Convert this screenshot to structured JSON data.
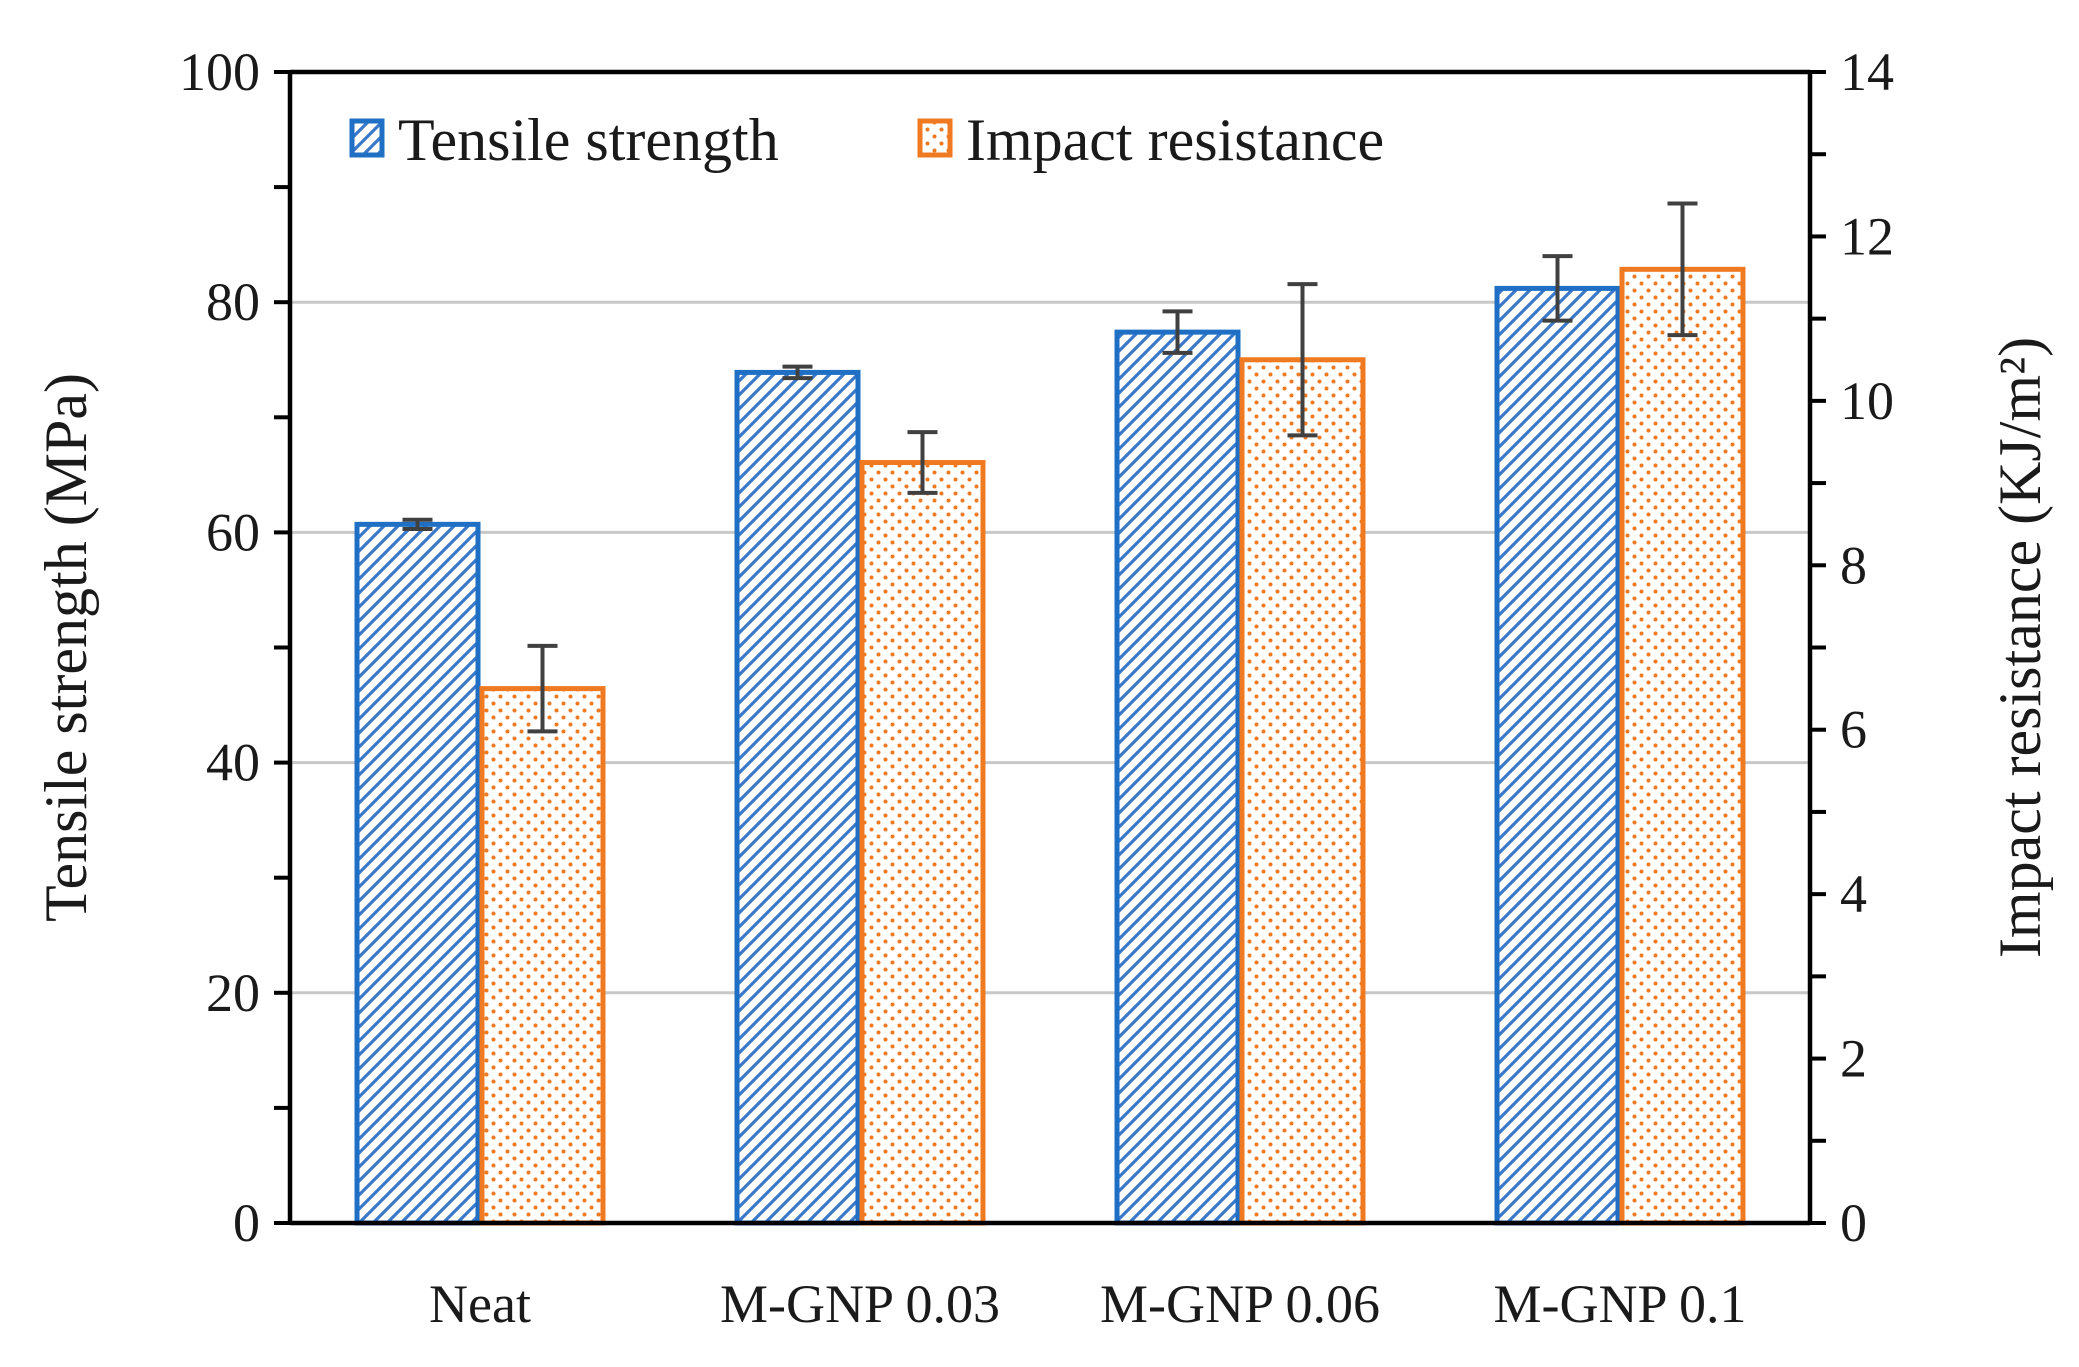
{
  "chart_data": {
    "type": "bar",
    "title": "",
    "xlabel": "",
    "categories": [
      "Neat",
      "M-GNP 0.03",
      "M-GNP 0.06",
      "M-GNP 0.1"
    ],
    "left_axis": {
      "label": "Tensile strength (MPa)",
      "ylim": [
        0,
        100
      ],
      "ticks": [
        0,
        20,
        40,
        60,
        80,
        100
      ]
    },
    "right_axis": {
      "label": "Impact resistance (KJ/m²)",
      "ylim": [
        0,
        14
      ],
      "ticks": [
        0,
        2,
        4,
        6,
        8,
        10,
        12,
        14
      ]
    },
    "gridlines_at_left_values": [
      20,
      40,
      60,
      80
    ],
    "legend_position": "top-left",
    "series": [
      {
        "name": "Tensile strength",
        "axis": "left",
        "pattern": "diagonal-hatch",
        "color": "#1f6fc5",
        "values": [
          60.7,
          73.9,
          77.4,
          81.2
        ],
        "errors": [
          0.4,
          0.5,
          1.8,
          2.8
        ]
      },
      {
        "name": "Impact resistance",
        "axis": "right",
        "pattern": "dots",
        "color": "#f07a22",
        "values": [
          6.5,
          9.25,
          10.5,
          11.6
        ],
        "errors": [
          0.52,
          0.37,
          0.92,
          0.8
        ]
      }
    ]
  }
}
